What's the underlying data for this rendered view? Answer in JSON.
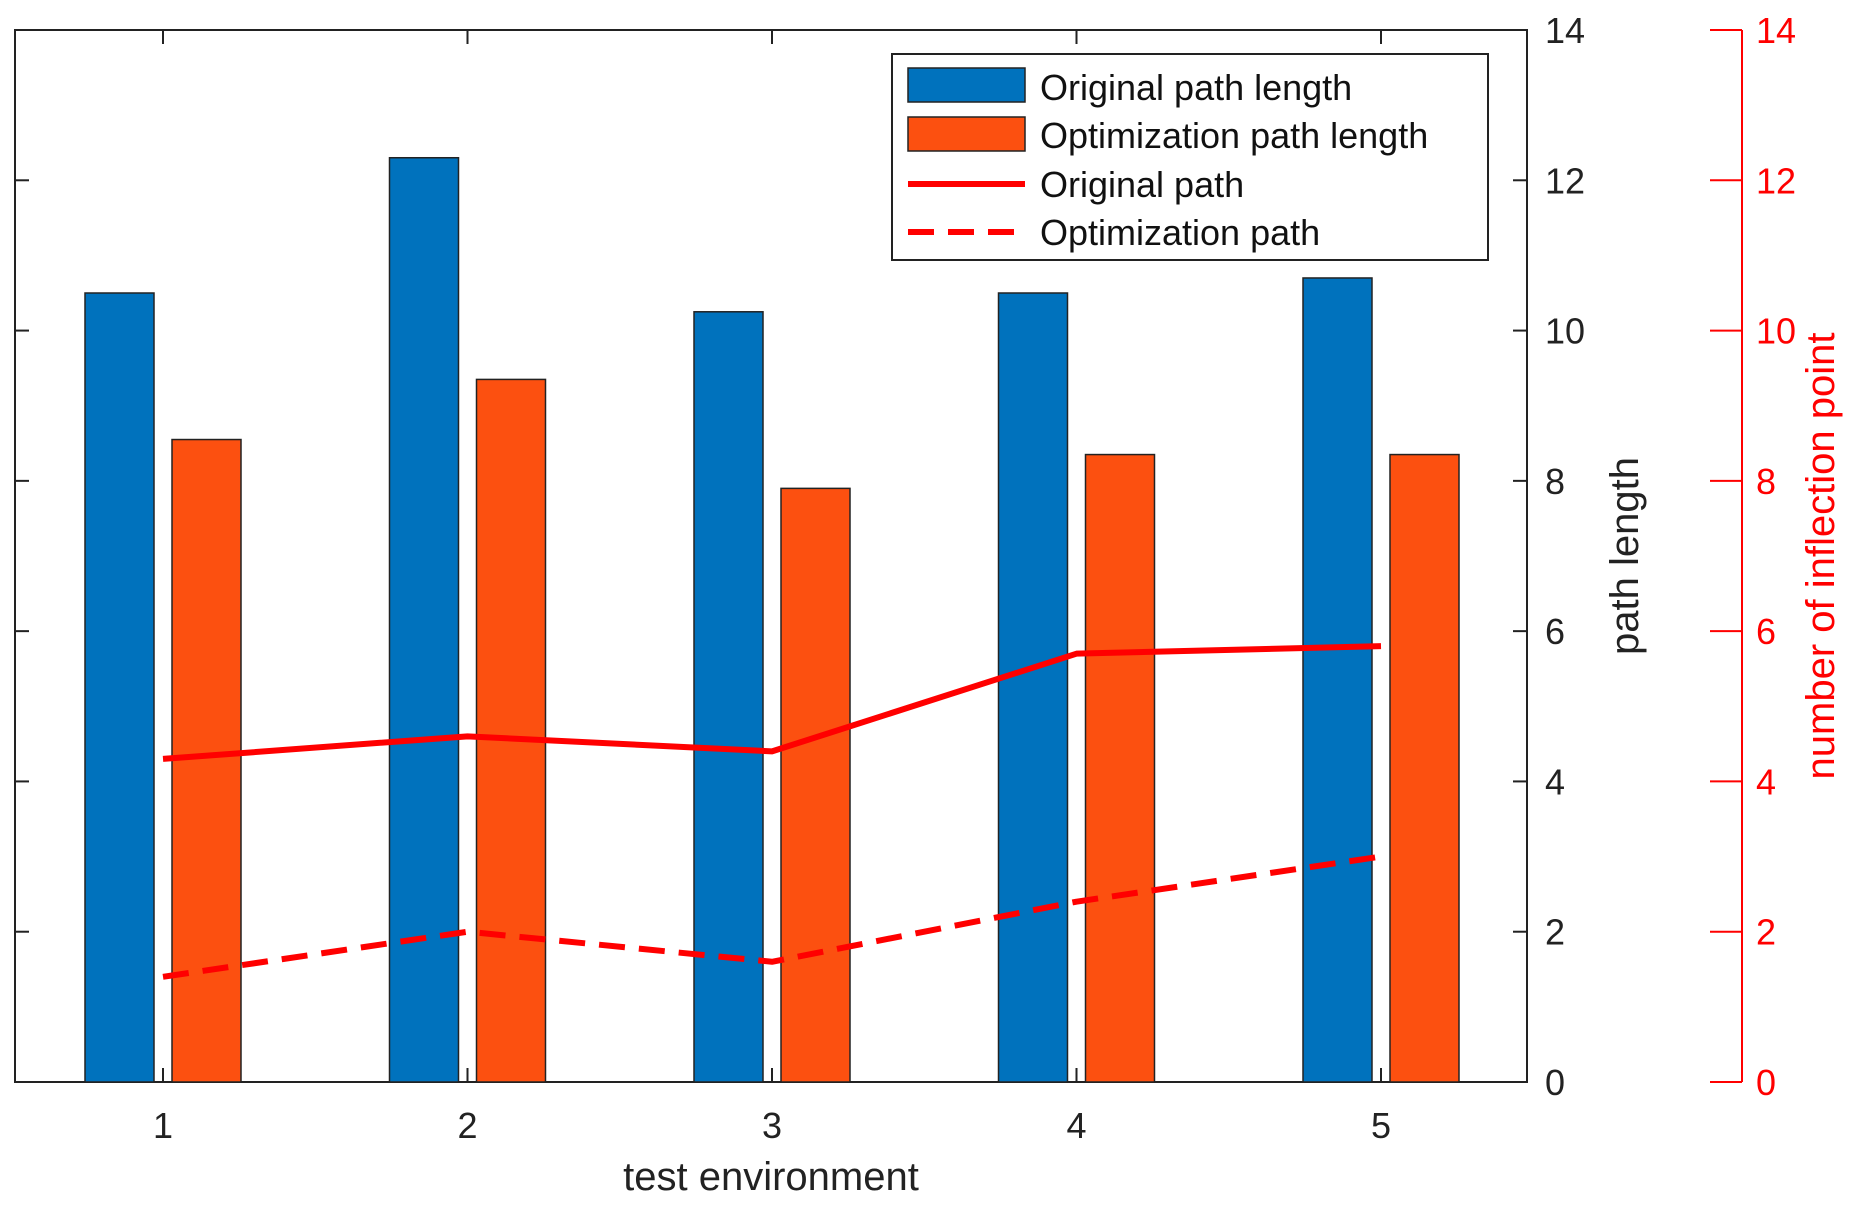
{
  "colors": {
    "original_bar": "#0072BD",
    "optimization_bar": "#FC5010",
    "line": "#ff0000",
    "axis": "#222222",
    "right_axis": "#ff0000"
  },
  "chart_data": {
    "type": "bar",
    "title": "",
    "xlabel": "test environment",
    "ylabel": "path length",
    "ylabel_right": "number of inflection point",
    "categories": [
      "1",
      "2",
      "3",
      "4",
      "5"
    ],
    "ylim": [
      0,
      14
    ],
    "ylim_right": [
      0,
      14
    ],
    "yticks": [
      "0",
      "2",
      "4",
      "6",
      "8",
      "10",
      "12",
      "14"
    ],
    "yticks_right": [
      "0",
      "2",
      "4",
      "6",
      "8",
      "10",
      "12",
      "14"
    ],
    "legend_position": "top-right",
    "series": [
      {
        "name": "Original path length",
        "kind": "bar",
        "axis": "left",
        "color": "#0072BD",
        "values": [
          10.5,
          12.3,
          10.25,
          10.5,
          10.7
        ]
      },
      {
        "name": "Optimization path length",
        "kind": "bar",
        "axis": "left",
        "color": "#FC5010",
        "values": [
          8.55,
          9.35,
          7.9,
          8.35,
          8.35
        ]
      },
      {
        "name": "Original path",
        "kind": "line",
        "style": "solid",
        "axis": "right",
        "color": "#ff0000",
        "values": [
          4.3,
          4.6,
          4.4,
          5.7,
          5.8
        ]
      },
      {
        "name": "Optimization path",
        "kind": "line",
        "style": "dashed",
        "axis": "right",
        "color": "#ff0000",
        "values": [
          1.4,
          2.0,
          1.6,
          2.4,
          3.0
        ]
      }
    ]
  }
}
